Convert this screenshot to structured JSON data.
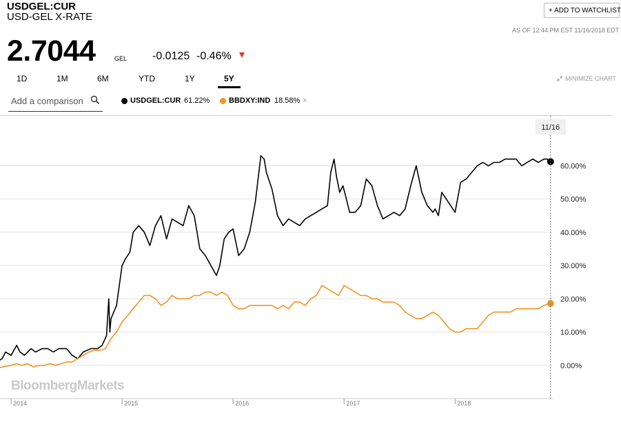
{
  "header": {
    "ticker": "USDGEL:CUR",
    "name": "USD-GEL X-RATE",
    "watchlist_label": "+ ADD TO WATCHLIST",
    "as_of": "AS OF 12:44 PM EST 11/16/2018 EDT"
  },
  "quote": {
    "price": "2.7044",
    "unit": "GEL",
    "change": "-0.0125",
    "change_pct": "-0.46%",
    "direction_color": "#e0352b"
  },
  "ranges": [
    "1D",
    "1M",
    "6M",
    "YTD",
    "1Y",
    "5Y"
  ],
  "active_range": "5Y",
  "minimize_label": "MINIMIZE CHART",
  "comparison": {
    "placeholder": "Add a comparison",
    "legend": [
      {
        "name": "USDGEL:CUR",
        "value": "61.22%",
        "color": "#000000",
        "removable": false
      },
      {
        "name": "BBDXY:IND",
        "value": "18.58%",
        "color": "#f39323",
        "removable": true,
        "remove_symbol": "×"
      }
    ]
  },
  "watermark": "BloombergMarkets",
  "chart_data": {
    "type": "line",
    "y_unit": "percent change",
    "ylim": [
      -10,
      75
    ],
    "y_ticks": [
      "0.00%",
      "10.00%",
      "20.00%",
      "30.00%",
      "40.00%",
      "50.00%",
      "60.00%"
    ],
    "y_tick_values": [
      0,
      10,
      20,
      30,
      40,
      50,
      60
    ],
    "x_labels": [
      "2014",
      "2015",
      "2016",
      "2017",
      "2018"
    ],
    "x_label_years": [
      2014,
      2015,
      2016,
      2017,
      2018
    ],
    "xlim": [
      2013.9,
      2018.88
    ],
    "marker_label": "11/16",
    "grid": true,
    "series": [
      {
        "name": "USDGEL:CUR",
        "color": "#000000",
        "x": [
          2013.87,
          2013.92,
          2013.95,
          2014.0,
          2014.05,
          2014.08,
          2014.12,
          2014.18,
          2014.22,
          2014.28,
          2014.33,
          2014.38,
          2014.43,
          2014.5,
          2014.55,
          2014.6,
          2014.65,
          2014.72,
          2014.78,
          2014.82,
          2014.86,
          2014.88,
          2014.89,
          2014.9,
          2014.95,
          2015.0,
          2015.03,
          2015.07,
          2015.1,
          2015.15,
          2015.2,
          2015.25,
          2015.3,
          2015.35,
          2015.4,
          2015.45,
          2015.5,
          2015.55,
          2015.6,
          2015.65,
          2015.7,
          2015.75,
          2015.8,
          2015.85,
          2015.88,
          2015.92,
          2015.96,
          2016.0,
          2016.05,
          2016.1,
          2016.15,
          2016.2,
          2016.25,
          2016.28,
          2016.3,
          2016.35,
          2016.4,
          2016.45,
          2016.5,
          2016.55,
          2016.6,
          2016.65,
          2016.7,
          2016.75,
          2016.8,
          2016.85,
          2016.88,
          2016.91,
          2016.93,
          2016.96,
          2016.99,
          2017.02,
          2017.05,
          2017.1,
          2017.15,
          2017.2,
          2017.25,
          2017.3,
          2017.35,
          2017.4,
          2017.45,
          2017.5,
          2017.55,
          2017.6,
          2017.65,
          2017.7,
          2017.75,
          2017.8,
          2017.82,
          2017.85,
          2017.88,
          2017.92,
          2017.96,
          2018.0,
          2018.05,
          2018.1,
          2018.15,
          2018.2,
          2018.25,
          2018.3,
          2018.35,
          2018.4,
          2018.45,
          2018.5,
          2018.55,
          2018.6,
          2018.65,
          2018.7,
          2018.75,
          2018.8,
          2018.83,
          2018.86
        ],
        "values": [
          1,
          2,
          4,
          3,
          6,
          4,
          3,
          5,
          4,
          5,
          5,
          4,
          5,
          5,
          3,
          2,
          4,
          5,
          5,
          6,
          9,
          20,
          10,
          14,
          18,
          30,
          32,
          34,
          40,
          42,
          40,
          36,
          42,
          45,
          38,
          44,
          43,
          42,
          48,
          45,
          35,
          33,
          30,
          27,
          30,
          38,
          40,
          41,
          33,
          35,
          40,
          49,
          63,
          62,
          58,
          53,
          45,
          42,
          44,
          43,
          42,
          44,
          45,
          46,
          47,
          48,
          58,
          62,
          57,
          52,
          54,
          50,
          46,
          46,
          48,
          56,
          54,
          48,
          44,
          45,
          46,
          45,
          47,
          54,
          60,
          52,
          48,
          46,
          47,
          45,
          52,
          50,
          48,
          46,
          55,
          56,
          58,
          60,
          61,
          60,
          61,
          61,
          62,
          62,
          62,
          60,
          61,
          62,
          61,
          62,
          62,
          61.22
        ]
      },
      {
        "name": "BBDXY:IND",
        "color": "#f39323",
        "x": [
          2013.87,
          2013.92,
          2014.0,
          2014.05,
          2014.1,
          2014.15,
          2014.2,
          2014.25,
          2014.3,
          2014.35,
          2014.4,
          2014.45,
          2014.5,
          2014.55,
          2014.6,
          2014.65,
          2014.7,
          2014.75,
          2014.8,
          2014.85,
          2014.9,
          2014.95,
          2015.0,
          2015.05,
          2015.1,
          2015.15,
          2015.2,
          2015.25,
          2015.3,
          2015.35,
          2015.4,
          2015.45,
          2015.5,
          2015.55,
          2015.6,
          2015.65,
          2015.7,
          2015.75,
          2015.8,
          2015.85,
          2015.9,
          2015.95,
          2016.0,
          2016.05,
          2016.1,
          2016.15,
          2016.2,
          2016.25,
          2016.3,
          2016.35,
          2016.4,
          2016.45,
          2016.5,
          2016.55,
          2016.6,
          2016.65,
          2016.7,
          2016.75,
          2016.8,
          2016.85,
          2016.9,
          2016.95,
          2017.0,
          2017.05,
          2017.1,
          2017.15,
          2017.2,
          2017.25,
          2017.3,
          2017.35,
          2017.4,
          2017.45,
          2017.5,
          2017.55,
          2017.6,
          2017.65,
          2017.7,
          2017.75,
          2017.8,
          2017.85,
          2017.9,
          2017.95,
          2018.0,
          2018.05,
          2018.1,
          2018.15,
          2018.2,
          2018.25,
          2018.3,
          2018.35,
          2018.4,
          2018.45,
          2018.5,
          2018.55,
          2018.6,
          2018.65,
          2018.7,
          2018.75,
          2018.8,
          2018.86
        ],
        "values": [
          -1,
          -0.5,
          0,
          0.5,
          0,
          0.5,
          -0.5,
          0,
          0,
          0.5,
          0,
          0.5,
          1,
          1,
          2,
          3,
          4,
          4.5,
          4.5,
          5,
          8,
          10,
          13,
          15,
          17,
          19,
          21,
          21,
          20,
          18,
          19,
          21,
          20,
          20,
          20,
          21,
          21,
          22,
          22,
          21,
          22,
          21,
          18,
          17,
          17,
          18,
          18,
          18,
          18,
          18,
          17,
          18,
          17,
          19,
          19,
          18,
          20,
          21,
          24,
          23,
          22,
          21,
          24,
          23,
          22,
          21,
          21,
          20,
          20,
          19,
          19,
          19,
          18,
          16,
          15,
          14,
          14,
          15,
          16,
          15,
          13,
          11,
          10,
          10,
          11,
          11,
          11,
          13,
          15,
          16,
          16,
          16,
          16,
          17,
          17,
          17,
          17,
          17,
          18,
          18.58
        ]
      }
    ]
  }
}
